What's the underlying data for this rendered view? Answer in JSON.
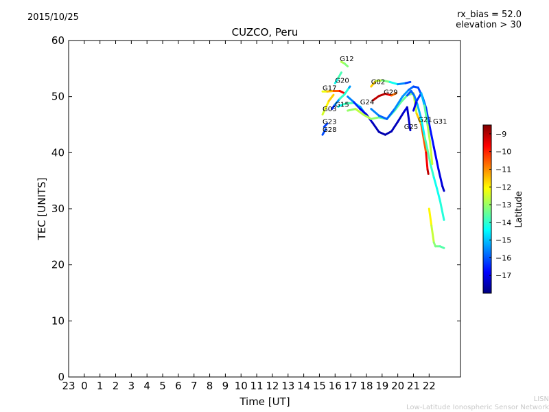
{
  "header": {
    "date": "2015/10/25",
    "rx_bias": "rx_bias = 52.0",
    "elevation": "elevation > 30"
  },
  "footer": {
    "line1": "LISN",
    "line2": "Low-Latitude Ionospheric Sensor Network"
  },
  "chart_data": {
    "type": "scatter",
    "title": "CUZCO, Peru",
    "xlabel": "Time [UT]",
    "ylabel": "TEC [UNITS]",
    "xlim": [
      -1,
      24
    ],
    "ylim": [
      0,
      60
    ],
    "xtick_values": [
      -1,
      0,
      1,
      2,
      3,
      4,
      5,
      6,
      7,
      8,
      9,
      10,
      11,
      12,
      13,
      14,
      15,
      16,
      17,
      18,
      19,
      20,
      21,
      22
    ],
    "xtick_labels": [
      "23",
      "0",
      "1",
      "2",
      "3",
      "4",
      "5",
      "6",
      "7",
      "8",
      "9",
      "10",
      "11",
      "12",
      "13",
      "14",
      "15",
      "16",
      "17",
      "18",
      "19",
      "20",
      "21",
      "22"
    ],
    "ytick_values": [
      0,
      10,
      20,
      30,
      40,
      50,
      60
    ],
    "colorbar": {
      "label": "Latitude",
      "range": [
        -18,
        -8.5
      ],
      "ticks": [
        -9,
        -10,
        -11,
        -12,
        -13,
        -14,
        -15,
        -16,
        -17
      ],
      "colormap": [
        "#00007f",
        "#0000ff",
        "#007fff",
        "#00ffff",
        "#7fff7f",
        "#ffff00",
        "#ff7f00",
        "#ff0000",
        "#7f0000"
      ]
    },
    "series": [
      {
        "name": "G12",
        "label_x": 16.3,
        "label_y": 56.3,
        "points": [
          [
            16.4,
            56.2,
            -12.6
          ],
          [
            16.6,
            55.9,
            -13.0
          ],
          [
            16.8,
            55.4,
            -13.4
          ]
        ]
      },
      {
        "name": "G20",
        "label_x": 16.0,
        "label_y": 52.5,
        "points": [
          [
            16.0,
            52.4,
            -14.6
          ],
          [
            16.2,
            53.3,
            -14.0
          ],
          [
            16.4,
            54.3,
            -13.5
          ]
        ]
      },
      {
        "name": "G17",
        "label_x": 15.2,
        "label_y": 51.1,
        "points": [
          [
            15.2,
            50.9,
            -12.4
          ],
          [
            15.5,
            50.9,
            -12.0
          ],
          [
            15.9,
            51.0,
            -11.0
          ],
          [
            16.3,
            51.0,
            -10.0
          ],
          [
            16.6,
            50.6,
            -9.2
          ]
        ]
      },
      {
        "name": "G03",
        "label_x": 15.2,
        "label_y": 47.4,
        "points": [
          [
            15.2,
            46.8,
            -12.7
          ],
          [
            15.4,
            48.0,
            -12.2
          ],
          [
            15.6,
            49.2,
            -11.8
          ],
          [
            15.9,
            50.3,
            -11.4
          ]
        ]
      },
      {
        "name": "G23",
        "label_x": 15.2,
        "label_y": 45.1,
        "points": [
          [
            15.3,
            44.6,
            -16.0
          ],
          [
            15.5,
            45.2,
            -16.4
          ]
        ]
      },
      {
        "name": "G28",
        "label_x": 15.2,
        "label_y": 43.7,
        "points": [
          [
            15.2,
            43.2,
            -16.0
          ],
          [
            15.4,
            44.2,
            -16.2
          ]
        ]
      },
      {
        "name": "G15",
        "label_x": 16.0,
        "label_y": 48.2,
        "points": [
          [
            15.8,
            47.8,
            -16.5
          ],
          [
            16.0,
            48.6,
            -16.3
          ],
          [
            16.3,
            49.6,
            -14.5
          ],
          [
            16.6,
            50.4,
            -13.4
          ],
          [
            16.9,
            51.6,
            -14.8
          ],
          [
            16.95,
            51.8,
            -16.0
          ]
        ]
      },
      {
        "name": "G24",
        "label_x": 17.6,
        "label_y": 48.6,
        "points": [
          [
            16.2,
            48.2,
            -14.5
          ],
          [
            16.5,
            48.6,
            -14.2
          ],
          [
            16.8,
            48.8,
            -13.5
          ],
          [
            17.2,
            48.9,
            -14.0
          ],
          [
            17.6,
            48.2,
            -14.6
          ],
          [
            17.9,
            47.0,
            -16.0
          ],
          [
            18.2,
            46.1,
            -16.2
          ]
        ]
      },
      {
        "name": "G29",
        "label_x": 19.1,
        "label_y": 50.4,
        "points": [
          [
            18.4,
            49.3,
            -9.2
          ],
          [
            18.8,
            50.1,
            -9.0
          ],
          [
            19.2,
            50.5,
            -9.1
          ],
          [
            19.6,
            50.2,
            -10.2
          ],
          [
            19.9,
            50.6,
            -11.2
          ]
        ]
      },
      {
        "name": "G02",
        "label_x": 18.3,
        "label_y": 52.2,
        "points": [
          [
            18.3,
            51.8,
            -11.0
          ],
          [
            18.6,
            52.8,
            -12.2
          ],
          [
            19.0,
            52.9,
            -13.0
          ],
          [
            19.5,
            52.6,
            -13.6
          ],
          [
            20.0,
            52.2,
            -15.0
          ],
          [
            20.5,
            52.4,
            -16.0
          ],
          [
            20.8,
            52.6,
            -16.4
          ]
        ]
      },
      {
        "name": "G25",
        "label_x": 20.4,
        "label_y": 44.2,
        "points": [
          [
            16.8,
            50.0,
            -15.2
          ],
          [
            17.2,
            49.0,
            -16.0
          ],
          [
            17.6,
            47.8,
            -16.8
          ],
          [
            18.0,
            46.8,
            -17.2
          ],
          [
            18.4,
            45.3,
            -17.4
          ],
          [
            18.8,
            43.7,
            -17.5
          ],
          [
            19.2,
            43.2,
            -17.6
          ],
          [
            19.6,
            43.8,
            -17.5
          ],
          [
            20.0,
            45.5,
            -17.4
          ],
          [
            20.4,
            47.3,
            -17.3
          ],
          [
            20.6,
            48.1,
            -17.0
          ],
          [
            20.8,
            44.0,
            -17.6
          ]
        ]
      },
      {
        "name": "G21",
        "label_x": 21.3,
        "label_y": 45.5,
        "points": [
          [
            16.8,
            47.5,
            -13.3
          ],
          [
            17.3,
            47.8,
            -12.8
          ],
          [
            17.8,
            46.8,
            -12.5
          ],
          [
            18.3,
            46.0,
            -13.0
          ],
          [
            18.8,
            46.3,
            -13.2
          ],
          [
            19.3,
            46.0,
            -14.0
          ],
          [
            19.8,
            47.5,
            -13.8
          ],
          [
            20.2,
            49.0,
            -13.6
          ],
          [
            20.6,
            50.2,
            -13.4
          ],
          [
            21.0,
            50.6,
            -13.0
          ],
          [
            21.2,
            47.0,
            -12.2
          ],
          [
            21.5,
            45.0,
            -11.0
          ],
          [
            21.8,
            40.0,
            -10.0
          ],
          [
            21.9,
            37.0,
            -9.2
          ],
          [
            21.95,
            36.2,
            -9.0
          ]
        ]
      },
      {
        "name": "G31",
        "label_x": 22.25,
        "label_y": 45.2,
        "points": [
          [
            18.3,
            47.8,
            -15.4
          ],
          [
            18.8,
            46.6,
            -15.8
          ],
          [
            19.3,
            46.0,
            -16.0
          ],
          [
            19.8,
            47.8,
            -15.8
          ],
          [
            20.3,
            50.0,
            -15.2
          ],
          [
            20.7,
            51.2,
            -15.6
          ],
          [
            21.0,
            51.8,
            -16.0
          ],
          [
            21.3,
            51.6,
            -16.3
          ],
          [
            21.6,
            49.8,
            -16.0
          ],
          [
            21.8,
            48.0,
            -16.0
          ],
          [
            22.0,
            45.2,
            -16.5
          ],
          [
            22.3,
            41.0,
            -16.8
          ],
          [
            22.6,
            37.0,
            -17.0
          ],
          [
            22.85,
            34.0,
            -17.2
          ],
          [
            22.95,
            33.2,
            -17.4
          ]
        ]
      },
      {
        "name": "",
        "label_x": 0,
        "label_y": 0,
        "points": [
          [
            20.6,
            50.2,
            -16.0
          ],
          [
            20.85,
            51.0,
            -16.0
          ],
          [
            21.05,
            50.2,
            -15.8
          ],
          [
            21.25,
            48.6,
            -15.4
          ],
          [
            21.5,
            46.0,
            -14.8
          ],
          [
            21.7,
            43.0,
            -14.2
          ],
          [
            21.9,
            40.5,
            -13.4
          ],
          [
            22.1,
            37.8,
            -13.8
          ],
          [
            22.3,
            35.6,
            -14.2
          ],
          [
            22.5,
            33.6,
            -14.4
          ],
          [
            22.7,
            31.4,
            -14.2
          ],
          [
            22.95,
            28.0,
            -14.0
          ]
        ]
      },
      {
        "name": "",
        "label_x": 0,
        "label_y": 0,
        "points": [
          [
            21.0,
            47.5,
            -17.2
          ],
          [
            21.2,
            49.2,
            -16.8
          ],
          [
            21.5,
            50.6,
            -16.0
          ],
          [
            21.7,
            48.4,
            -14.2
          ],
          [
            21.9,
            45.0,
            -13.0
          ],
          [
            22.05,
            42.0,
            -12.6
          ],
          [
            22.2,
            38.0,
            -12.5
          ]
        ]
      },
      {
        "name": "",
        "label_x": 0,
        "label_y": 0,
        "points": [
          [
            22.0,
            30.0,
            -11.8
          ],
          [
            22.15,
            27.0,
            -12.2
          ],
          [
            22.3,
            24.0,
            -13.0
          ],
          [
            22.4,
            23.3,
            -13.2
          ],
          [
            22.7,
            23.3,
            -13.5
          ],
          [
            22.95,
            23.0,
            -13.8
          ]
        ]
      }
    ]
  }
}
